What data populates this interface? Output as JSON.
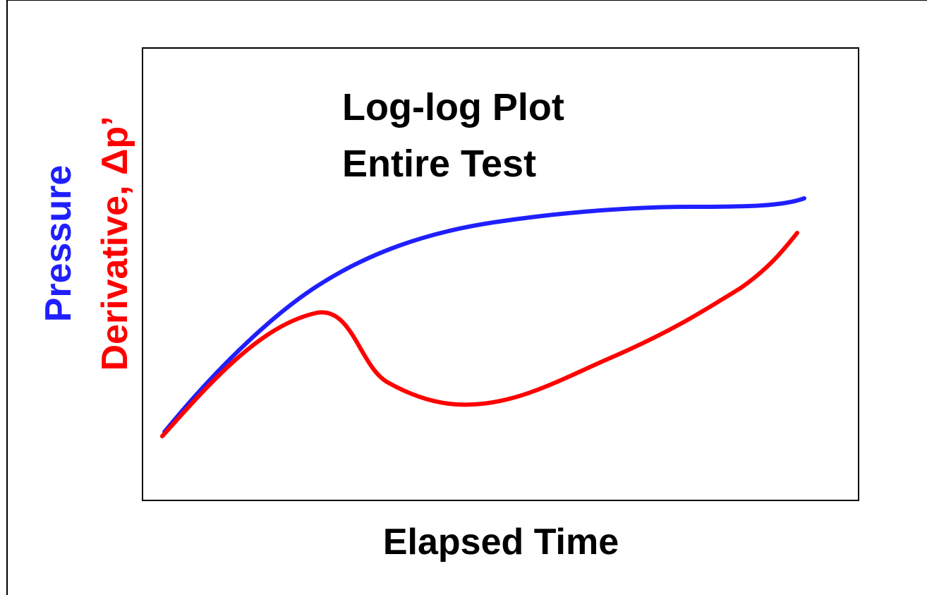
{
  "title": [
    "Log-log Plot",
    "Entire Test"
  ],
  "y_labels": {
    "pressure": "Pressure",
    "derivative": "Derivative, Δp’"
  },
  "x_label": "Elapsed Time"
}
